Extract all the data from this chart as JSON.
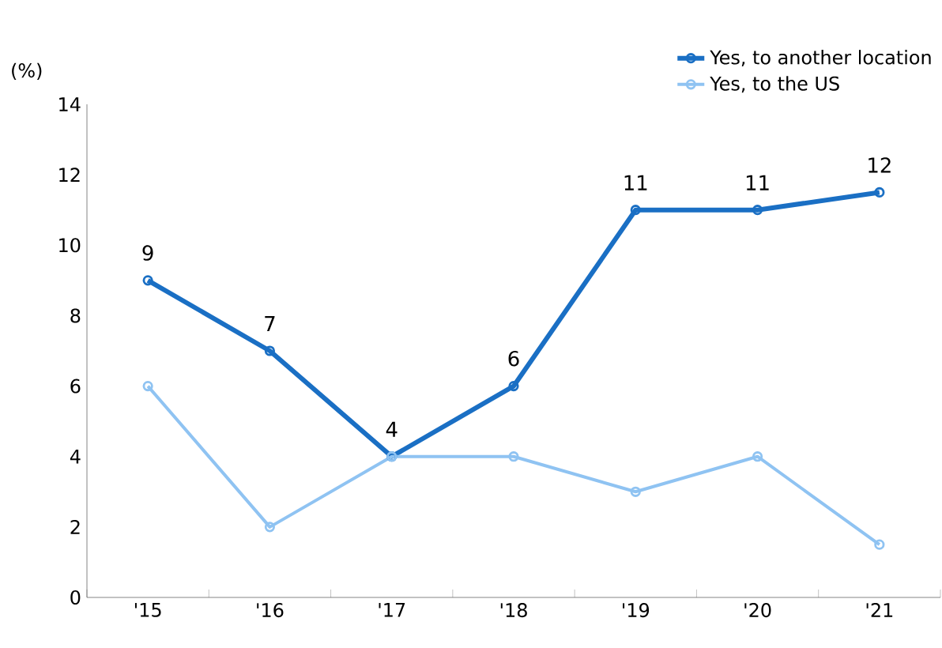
{
  "chart_data": {
    "type": "line",
    "ylabel": "(%)",
    "categories": [
      "'15",
      "'16",
      "'17",
      "'18",
      "'19",
      "'20",
      "'21"
    ],
    "series": [
      {
        "name": "Yes, to another location",
        "color": "#1a6fc4",
        "values": [
          9,
          7,
          4,
          6,
          11,
          11,
          11.5
        ],
        "value_labels": [
          "9",
          "7",
          "4",
          "6",
          "11",
          "11",
          "12"
        ]
      },
      {
        "name": "Yes, to the US",
        "color": "#8fc3f2",
        "values": [
          6,
          2,
          4,
          4,
          3,
          4,
          1.5
        ]
      }
    ],
    "ylim": [
      0,
      14
    ],
    "yticks": [
      0,
      2,
      4,
      6,
      8,
      10,
      12,
      14
    ],
    "grid": false,
    "legend": "top right",
    "marker": "circle",
    "line_style": "solid"
  }
}
